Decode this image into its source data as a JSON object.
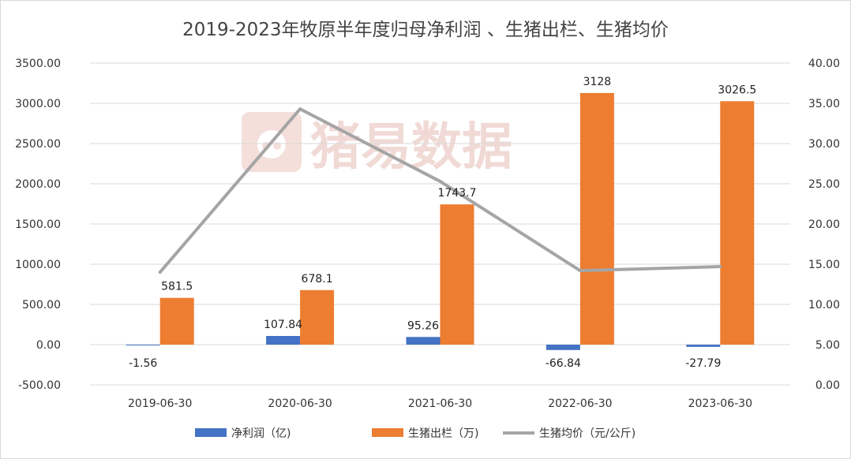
{
  "chart_data": {
    "type": "bar+line",
    "title": "2019-2023年牧原半年度归母净利润 、生猪出栏、生猪均价",
    "categories": [
      "2019-06-30",
      "2020-06-30",
      "2021-06-30",
      "2022-06-30",
      "2023-06-30"
    ],
    "series": [
      {
        "name": "净利润（亿)",
        "kind": "bar",
        "axis": "left",
        "color": "#4472C4",
        "values": [
          -1.56,
          107.84,
          95.26,
          -66.84,
          -27.79
        ],
        "labels": [
          "-1.56",
          "107.84",
          "95.26",
          "-66.84",
          "-27.79"
        ]
      },
      {
        "name": "生猪出栏（万)",
        "kind": "bar",
        "axis": "left",
        "color": "#ED7D31",
        "values": [
          581.5,
          678.1,
          1743.7,
          3128,
          3026.5
        ],
        "labels": [
          "581.5",
          "678.1",
          "1743.7",
          "3128",
          "3026.5"
        ]
      },
      {
        "name": "生猪均价（元/公斤)",
        "kind": "line",
        "axis": "right",
        "color": "#A5A5A5",
        "values": [
          14.0,
          34.3,
          25.3,
          14.2,
          14.7
        ]
      }
    ],
    "left_axis": {
      "min": -500,
      "max": 3500,
      "step": 500,
      "ticks": [
        "-500.00",
        "0.00",
        "500.00",
        "1000.00",
        "1500.00",
        "2000.00",
        "2500.00",
        "3000.00",
        "3500.00"
      ]
    },
    "right_axis": {
      "min": 0,
      "max": 40,
      "step": 5,
      "ticks": [
        "0.00",
        "5.00",
        "10.00",
        "15.00",
        "20.00",
        "25.00",
        "30.00",
        "35.00",
        "40.00"
      ]
    },
    "grid": true,
    "legend_position": "bottom"
  },
  "watermark": {
    "text": "猪易数据",
    "icon": "pig-logo-icon"
  }
}
